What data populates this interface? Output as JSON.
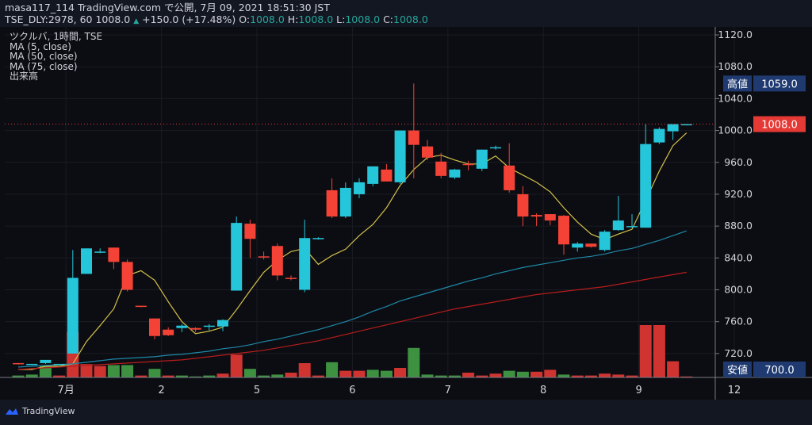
{
  "header": {
    "line1": "masa117_114 TradingView.com で公開, 7月 09, 2021 18:51:30 JST",
    "line2_prefix": "TSE_DLY:2978, 60 1008.0",
    "change_arrow": "▲",
    "change": "+150.0 (+17.48%)",
    "o_label": "O:",
    "o_value": "1008.0",
    "h_label": "H:",
    "h_value": "1008.0",
    "l_label": "L:",
    "l_value": "1008.0",
    "c_label": "C:",
    "c_value": "1008.0"
  },
  "legend": {
    "symbol": "ツクルバ, 1時間, TSE",
    "ma5": "MA (5, close)",
    "ma50": "MA (50, close)",
    "ma75": "MA (75, close)",
    "volume": "出来高"
  },
  "footer": {
    "logo_text": "TradingView"
  },
  "colors": {
    "up": "#26c6da",
    "down": "#f44336",
    "vol_up": "#43a047",
    "vol_down": "#e53935",
    "ma5": "#d4c14a",
    "ma50": "#1e88a8",
    "ma75": "#b71c1c",
    "badge": "#1e3a70",
    "last": "#e53935"
  },
  "chart_data": {
    "type": "candlestick",
    "ylim": [
      690,
      1130
    ],
    "yticks": [
      "1120.0",
      "1080.0",
      "1040.0",
      "1000.0",
      "960.0",
      "920.0",
      "880.0",
      "840.0",
      "800.0",
      "760.0",
      "720.0"
    ],
    "xticks": [
      {
        "index": 3.5,
        "label": "7月"
      },
      {
        "index": 10.5,
        "label": "2"
      },
      {
        "index": 17.5,
        "label": "5"
      },
      {
        "index": 24.5,
        "label": "6"
      },
      {
        "index": 31.5,
        "label": "7"
      },
      {
        "index": 38.5,
        "label": "8"
      },
      {
        "index": 45.5,
        "label": "9"
      },
      {
        "index": 52.5,
        "label": "12"
      }
    ],
    "high_label": "高値",
    "high_value": "1059.0",
    "low_label": "安値",
    "low_value": "700.0",
    "last_value": "1008.0",
    "candles": [
      {
        "o": 708,
        "h": 708,
        "l": 706,
        "c": 707
      },
      {
        "o": 707,
        "h": 707,
        "l": 707,
        "c": 707
      },
      {
        "o": 708,
        "h": 709,
        "l": 707,
        "c": 712
      },
      {
        "o": 707,
        "h": 707,
        "l": 707,
        "c": 707
      },
      {
        "o": 720,
        "h": 850,
        "l": 720,
        "c": 815
      },
      {
        "o": 820,
        "h": 852,
        "l": 820,
        "c": 852
      },
      {
        "o": 848,
        "h": 852,
        "l": 846,
        "c": 848
      },
      {
        "o": 853,
        "h": 853,
        "l": 826,
        "c": 835
      },
      {
        "o": 835,
        "h": 838,
        "l": 798,
        "c": 800
      },
      {
        "o": 780,
        "h": 780,
        "l": 778,
        "c": 779
      },
      {
        "o": 764,
        "h": 764,
        "l": 738,
        "c": 742
      },
      {
        "o": 750,
        "h": 753,
        "l": 742,
        "c": 743
      },
      {
        "o": 752,
        "h": 757,
        "l": 747,
        "c": 755
      },
      {
        "o": 752,
        "h": 753,
        "l": 747,
        "c": 750
      },
      {
        "o": 754,
        "h": 757,
        "l": 749,
        "c": 755
      },
      {
        "o": 754,
        "h": 763,
        "l": 748,
        "c": 762
      },
      {
        "o": 799,
        "h": 892,
        "l": 799,
        "c": 884
      },
      {
        "o": 883,
        "h": 888,
        "l": 840,
        "c": 864
      },
      {
        "o": 842,
        "h": 848,
        "l": 838,
        "c": 841
      },
      {
        "o": 855,
        "h": 858,
        "l": 812,
        "c": 818
      },
      {
        "o": 815,
        "h": 818,
        "l": 812,
        "c": 814
      },
      {
        "o": 800,
        "h": 888,
        "l": 797,
        "c": 865
      },
      {
        "o": 864,
        "h": 866,
        "l": 863,
        "c": 865
      },
      {
        "o": 925,
        "h": 940,
        "l": 890,
        "c": 892
      },
      {
        "o": 892,
        "h": 935,
        "l": 890,
        "c": 928
      },
      {
        "o": 920,
        "h": 940,
        "l": 915,
        "c": 935
      },
      {
        "o": 933,
        "h": 955,
        "l": 930,
        "c": 955
      },
      {
        "o": 951,
        "h": 958,
        "l": 936,
        "c": 936
      },
      {
        "o": 935,
        "h": 1000,
        "l": 933,
        "c": 1000
      },
      {
        "o": 1000,
        "h": 1059,
        "l": 940,
        "c": 982
      },
      {
        "o": 980,
        "h": 988,
        "l": 963,
        "c": 966
      },
      {
        "o": 961,
        "h": 972,
        "l": 940,
        "c": 943
      },
      {
        "o": 941,
        "h": 952,
        "l": 939,
        "c": 951
      },
      {
        "o": 958,
        "h": 962,
        "l": 950,
        "c": 957
      },
      {
        "o": 952,
        "h": 976,
        "l": 949,
        "c": 976
      },
      {
        "o": 978,
        "h": 981,
        "l": 976,
        "c": 979
      },
      {
        "o": 956,
        "h": 984,
        "l": 922,
        "c": 925
      },
      {
        "o": 920,
        "h": 930,
        "l": 880,
        "c": 892
      },
      {
        "o": 894,
        "h": 896,
        "l": 880,
        "c": 892
      },
      {
        "o": 895,
        "h": 895,
        "l": 881,
        "c": 887
      },
      {
        "o": 893,
        "h": 894,
        "l": 844,
        "c": 857
      },
      {
        "o": 853,
        "h": 860,
        "l": 848,
        "c": 858
      },
      {
        "o": 858,
        "h": 858,
        "l": 853,
        "c": 854
      },
      {
        "o": 850,
        "h": 875,
        "l": 848,
        "c": 873
      },
      {
        "o": 875,
        "h": 918,
        "l": 874,
        "c": 887
      },
      {
        "o": 880,
        "h": 895,
        "l": 878,
        "c": 880
      },
      {
        "o": 878,
        "h": 1008,
        "l": 878,
        "c": 983
      },
      {
        "o": 985,
        "h": 1004,
        "l": 983,
        "c": 1002
      },
      {
        "o": 999,
        "h": 1006,
        "l": 988,
        "c": 1008
      },
      {
        "o": 1008,
        "h": 1008,
        "l": 1008,
        "c": 1008
      }
    ],
    "volume_max": 100,
    "volumes": [
      2,
      3,
      12,
      2,
      48,
      14,
      12,
      13,
      13,
      2,
      9,
      2,
      2,
      1,
      2,
      4,
      24,
      9,
      2,
      3,
      5,
      15,
      2,
      16,
      7,
      7,
      8,
      7,
      10,
      31,
      3,
      2,
      2,
      5,
      2,
      4,
      7,
      6,
      6,
      8,
      3,
      2,
      2,
      4,
      3,
      2,
      55,
      55,
      17,
      1
    ],
    "vol_dir": [
      1,
      1,
      1,
      -1,
      -1,
      -1,
      -1,
      1,
      1,
      -1,
      1,
      -1,
      1,
      1,
      1,
      -1,
      -1,
      1,
      1,
      1,
      -1,
      -1,
      -1,
      1,
      -1,
      -1,
      1,
      1,
      -1,
      1,
      1,
      1,
      1,
      -1,
      -1,
      -1,
      1,
      1,
      -1,
      -1,
      1,
      -1,
      -1,
      -1,
      -1,
      -1,
      -1,
      -1,
      -1,
      -1
    ],
    "series": [
      {
        "name": "MA (5, close)",
        "values": [
          700,
          700,
          704,
          704,
          707,
          735,
          755,
          776,
          818,
          824,
          812,
          785,
          760,
          745,
          748,
          753,
          775,
          799,
          822,
          837,
          848,
          852,
          832,
          843,
          851,
          868,
          882,
          903,
          931,
          951,
          966,
          969,
          963,
          958,
          958,
          968,
          953,
          944,
          935,
          923,
          903,
          885,
          870,
          863,
          870,
          876,
          912,
          949,
          981,
          997
        ]
      },
      {
        "name": "MA (50, close)",
        "values": [
          703,
          704,
          705,
          706,
          707,
          709,
          711,
          713,
          714,
          715,
          716,
          718,
          719,
          721,
          723,
          726,
          728,
          731,
          735,
          738,
          742,
          746,
          750,
          755,
          760,
          766,
          773,
          779,
          786,
          791,
          796,
          801,
          806,
          811,
          815,
          820,
          824,
          828,
          831,
          834,
          837,
          840,
          842,
          845,
          849,
          852,
          857,
          862,
          868,
          874
        ]
      },
      {
        "name": "MA (75, close)",
        "values": [
          700,
          701,
          702,
          703,
          704,
          705,
          706,
          707,
          708,
          709,
          710,
          711,
          712,
          714,
          716,
          718,
          720,
          722,
          724,
          727,
          730,
          733,
          736,
          740,
          744,
          748,
          752,
          756,
          760,
          764,
          768,
          772,
          776,
          779,
          782,
          785,
          788,
          791,
          794,
          796,
          798,
          800,
          802,
          804,
          807,
          810,
          813,
          816,
          819,
          822
        ]
      }
    ]
  }
}
